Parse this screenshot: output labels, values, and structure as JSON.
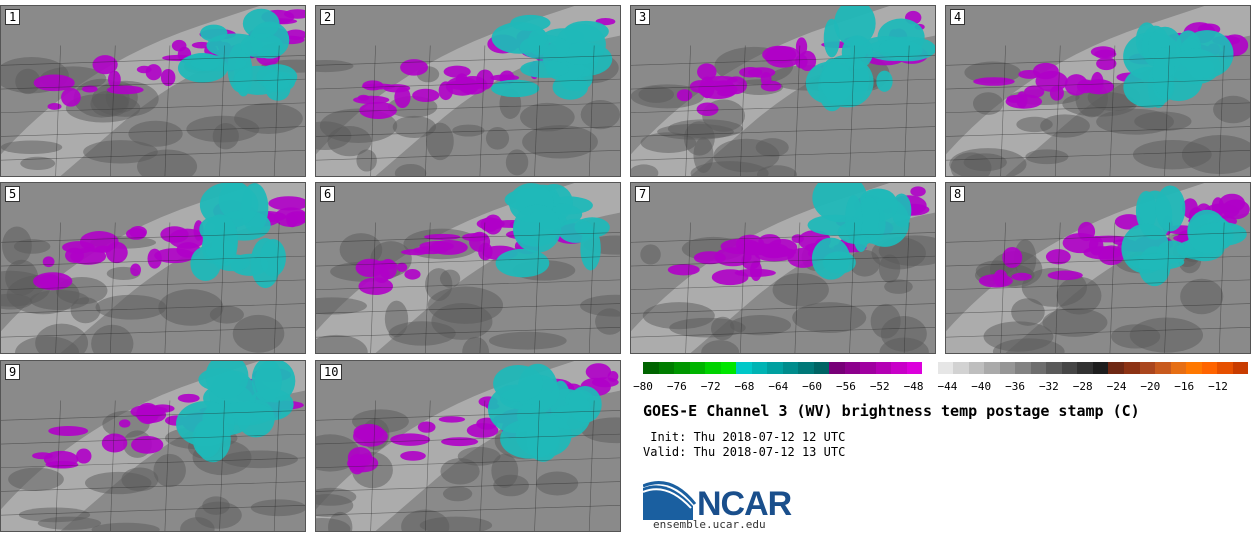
{
  "colors": {
    "background": "#ffffff",
    "map_gray_dark": "#5a5a5a",
    "map_gray_mid": "#8a8a8a",
    "map_gray_light": "#c8c8c8",
    "magenta": "#b000c8",
    "cyan": "#20b8b8"
  },
  "panels": [
    {
      "label": "1"
    },
    {
      "label": "2"
    },
    {
      "label": "3"
    },
    {
      "label": "4"
    },
    {
      "label": "5"
    },
    {
      "label": "6"
    },
    {
      "label": "7"
    },
    {
      "label": "8"
    },
    {
      "label": "9"
    },
    {
      "label": "10"
    }
  ],
  "colorbar": {
    "colors": [
      "#006400",
      "#007d00",
      "#009600",
      "#00b400",
      "#00d200",
      "#00e600",
      "#00c8c8",
      "#00b4b4",
      "#00a0a0",
      "#008c8c",
      "#007878",
      "#006464",
      "#780078",
      "#8c008c",
      "#a000a0",
      "#b400b4",
      "#c800c8",
      "#dc00dc",
      "#ffffff",
      "#e6e6e6",
      "#d2d2d2",
      "#bebebe",
      "#aaaaaa",
      "#969696",
      "#828282",
      "#6e6e6e",
      "#5a5a5a",
      "#464646",
      "#323232",
      "#1e1e1e",
      "#6e2814",
      "#8c3214",
      "#aa461e",
      "#c85a1e",
      "#e66e14",
      "#ff7800",
      "#ff6400",
      "#e65000",
      "#c83c00"
    ],
    "min": -80,
    "max": -8,
    "tick_labels": [
      "−80",
      "−76",
      "−72",
      "−68",
      "−64",
      "−60",
      "−56",
      "−52",
      "−48",
      "−44",
      "−40",
      "−36",
      "−32",
      "−28",
      "−24",
      "−20",
      "−16",
      "−12"
    ]
  },
  "title": "GOES-E Channel 3 (WV) brightness temp postage stamp (C)",
  "init": " Init: Thu 2018-07-12 12 UTC",
  "valid": "Valid: Thu 2018-07-12 13 UTC",
  "logo": {
    "text": "NCAR",
    "url": "ensemble.ucar.edu"
  }
}
